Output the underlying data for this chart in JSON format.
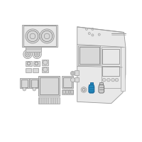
{
  "bg_color": "#ffffff",
  "lc": "#999999",
  "dc": "#666666",
  "hi": "#2288bb",
  "hi_dark": "#1a6699",
  "gray_fc": "#cccccc",
  "light_fc": "#e8e8e8",
  "mid_fc": "#d8d8d8"
}
